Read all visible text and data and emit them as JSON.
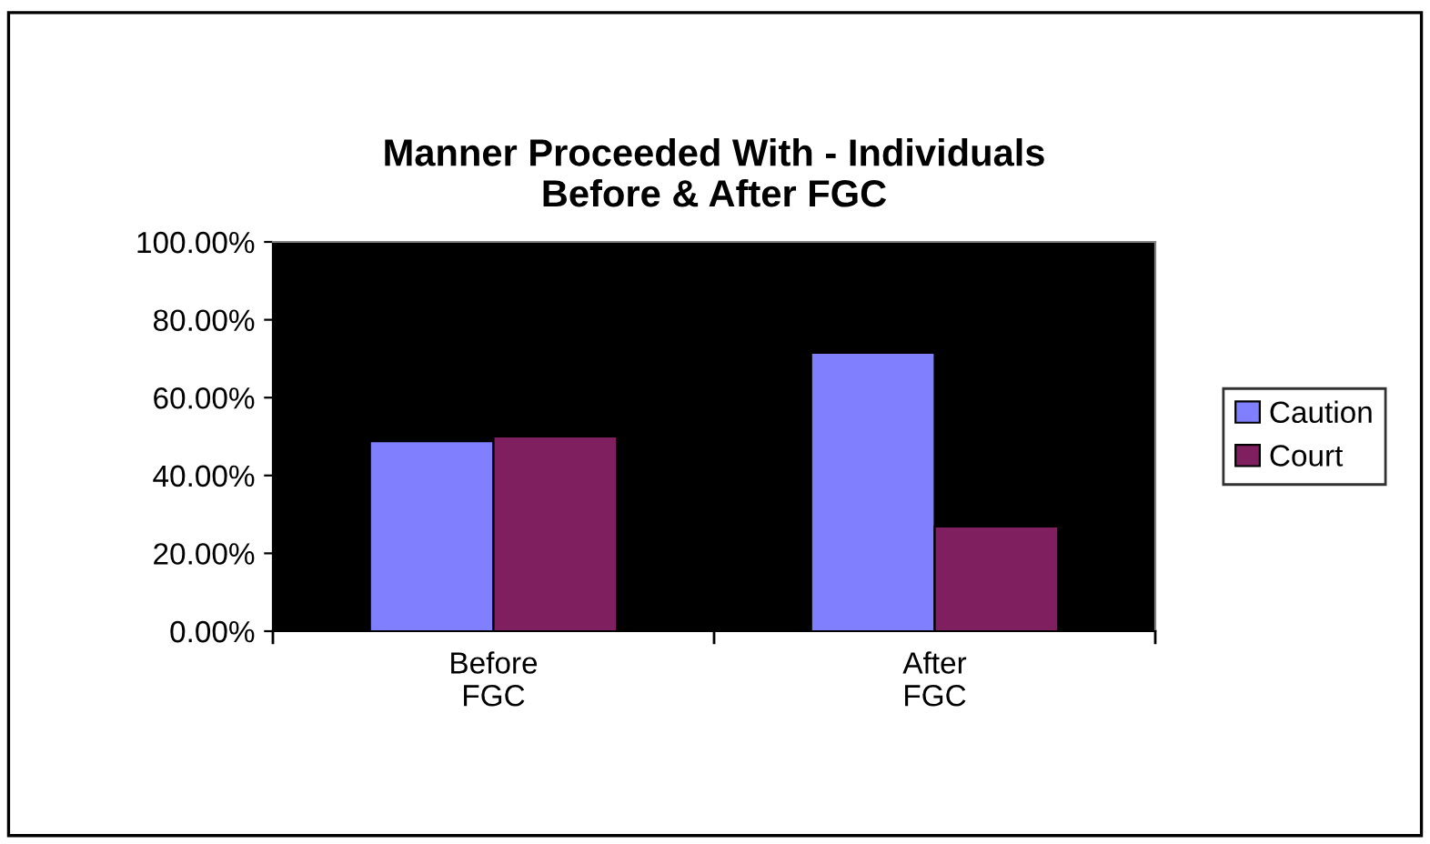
{
  "chart_data": {
    "type": "bar",
    "title": "Manner Proceeded With - Individuals\nBefore & After FGC",
    "categories": [
      "Before\nFGC",
      "After\nFGC"
    ],
    "series": [
      {
        "name": "Caution",
        "color": "#8080ff",
        "values": [
          48.8,
          71.5
        ]
      },
      {
        "name": "Court",
        "color": "#7f1f5f",
        "values": [
          50.0,
          26.9
        ]
      }
    ],
    "ylim": [
      0,
      100
    ],
    "yticks": [
      {
        "value": 0,
        "label": "0.00%"
      },
      {
        "value": 20,
        "label": "20.00%"
      },
      {
        "value": 40,
        "label": "40.00%"
      },
      {
        "value": 60,
        "label": "60.00%"
      },
      {
        "value": 80,
        "label": "80.00%"
      },
      {
        "value": 100,
        "label": "100.00%"
      }
    ],
    "grid": false,
    "legend": "right"
  }
}
